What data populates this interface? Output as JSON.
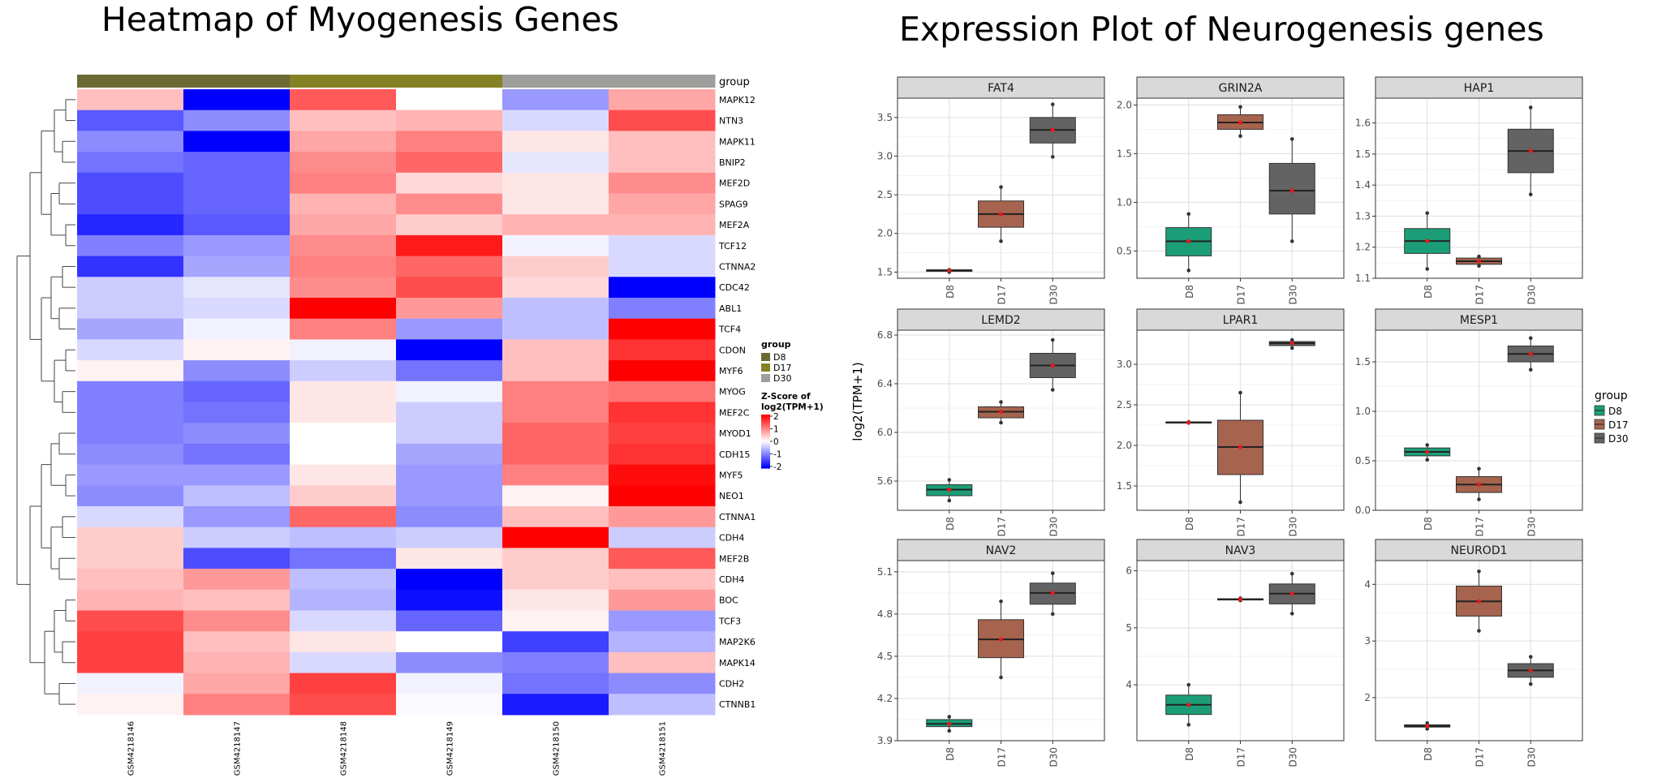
{
  "heatmap_title": "Heatmap of Myogenesis Genes",
  "boxplot_title": "Expression Plot of Neurogenesis genes",
  "chart_data": [
    {
      "type": "heatmap",
      "title": "Heatmap of Myogenesis Genes",
      "columns": [
        "GSM4218146",
        "GSM4218147",
        "GSM4218148",
        "GSM4218149",
        "GSM4218150",
        "GSM4218151"
      ],
      "column_groups": [
        "D8",
        "D8",
        "D17",
        "D17",
        "D30",
        "D30"
      ],
      "annotation_label": "group",
      "rows": [
        "MAPK12",
        "NTN3",
        "MAPK11",
        "BNIP2",
        "MEF2D",
        "SPAG9",
        "MEF2A",
        "TCF12",
        "CTNNA2",
        "CDC42",
        "ABL1",
        "TCF4",
        "CDON",
        "MYF6",
        "MYOG",
        "MEF2C",
        "MYOD1",
        "CDH15",
        "MYF5",
        "NEO1",
        "CTNNA1",
        "CDH4",
        "MEF2B",
        "CDH4",
        "BOC",
        "TCF3",
        "MAP2K6",
        "MAPK14",
        "CDH2",
        "CTNNB1"
      ],
      "values": [
        [
          0.5,
          -2.0,
          1.3,
          0.0,
          -0.8,
          0.7
        ],
        [
          -1.3,
          -0.9,
          0.5,
          0.6,
          -0.3,
          1.4
        ],
        [
          -0.9,
          -2.0,
          0.7,
          1.0,
          0.2,
          0.5
        ],
        [
          -1.1,
          -1.2,
          0.9,
          1.2,
          -0.2,
          0.5
        ],
        [
          -1.4,
          -1.2,
          1.0,
          0.3,
          0.2,
          0.9
        ],
        [
          -1.4,
          -1.2,
          0.6,
          0.9,
          0.2,
          0.7
        ],
        [
          -1.7,
          -1.3,
          0.7,
          0.4,
          0.6,
          0.6
        ],
        [
          -1.0,
          -0.8,
          0.9,
          1.8,
          -0.1,
          -0.3
        ],
        [
          -1.6,
          -0.7,
          1.0,
          1.2,
          0.4,
          -0.3
        ],
        [
          -0.4,
          -0.2,
          0.9,
          1.4,
          0.3,
          -2.0
        ],
        [
          -0.4,
          -0.3,
          2.0,
          0.8,
          -0.5,
          -1.0
        ],
        [
          -0.7,
          -0.1,
          1.0,
          -0.8,
          -0.5,
          2.0
        ],
        [
          -0.3,
          0.1,
          -0.1,
          -2.0,
          0.5,
          1.6
        ],
        [
          0.1,
          -0.9,
          -0.4,
          -1.1,
          0.5,
          2.0
        ],
        [
          -1.0,
          -1.2,
          0.2,
          -0.1,
          1.0,
          1.1
        ],
        [
          -1.0,
          -1.1,
          0.2,
          -0.4,
          1.0,
          1.6
        ],
        [
          -1.0,
          -0.9,
          0.0,
          -0.4,
          1.2,
          1.5
        ],
        [
          -0.9,
          -1.1,
          0.0,
          -0.7,
          1.2,
          1.6
        ],
        [
          -0.8,
          -0.8,
          0.2,
          -0.8,
          1.0,
          1.9
        ],
        [
          -0.9,
          -0.5,
          0.4,
          -0.8,
          0.1,
          2.0
        ],
        [
          -0.3,
          -0.8,
          1.2,
          -0.9,
          0.5,
          0.8
        ],
        [
          0.4,
          -0.4,
          -0.5,
          -0.4,
          2.0,
          -0.4
        ],
        [
          0.4,
          -1.4,
          -1.1,
          0.2,
          0.4,
          1.3
        ],
        [
          0.5,
          0.8,
          -0.5,
          -2.0,
          0.4,
          0.5
        ],
        [
          0.6,
          0.5,
          -0.6,
          -1.9,
          0.2,
          0.8
        ],
        [
          1.4,
          0.9,
          -0.3,
          -1.2,
          0.1,
          -0.8
        ],
        [
          1.5,
          0.5,
          0.2,
          0.0,
          -1.5,
          -0.6
        ],
        [
          1.5,
          0.6,
          -0.3,
          -0.9,
          -1.0,
          0.5
        ],
        [
          -0.1,
          0.7,
          1.5,
          -0.1,
          -1.1,
          -0.9
        ],
        [
          0.1,
          1.0,
          1.4,
          -0.05,
          -1.8,
          -0.5
        ]
      ],
      "color_scale": {
        "low": "#0000FF",
        "mid": "#FFFFFF",
        "high": "#FF0000",
        "range": [
          -2,
          2
        ]
      },
      "legend_group": {
        "title": "group",
        "items": [
          {
            "label": "D8",
            "color": "#6B6A35"
          },
          {
            "label": "D17",
            "color": "#848124"
          },
          {
            "label": "D30",
            "color": "#9E9E9C"
          }
        ]
      },
      "legend_scale": {
        "title": "Z-Score of log2(TPM+1)",
        "ticks": [
          "2",
          "1",
          "0",
          "-1",
          "-2"
        ]
      }
    },
    {
      "type": "box",
      "title": "Expression Plot of Neurogenesis genes",
      "ylabel": "log2(TPM+1)",
      "x": [
        "D8",
        "D17",
        "D30"
      ],
      "colors": {
        "D8": "#1B9E77",
        "D17": "#A6634E",
        "D30": "#636363"
      },
      "legend": {
        "title": "group",
        "items": [
          "D8",
          "D17",
          "D30"
        ],
        "position": "right"
      },
      "panels": [
        {
          "name": "FAT4",
          "yticks": [
            1.5,
            2.0,
            2.5,
            3.0,
            3.5
          ],
          "ylim": [
            1.42,
            3.75
          ],
          "boxes": [
            [
              1.5,
              1.51,
              1.52,
              1.53,
              1.54
            ],
            [
              1.9,
              2.08,
              2.25,
              2.42,
              2.6
            ],
            [
              2.99,
              3.17,
              3.34,
              3.5,
              3.67
            ]
          ],
          "points": [
            [
              1.5,
              1.51,
              1.53
            ],
            [
              1.9,
              2.25,
              2.6
            ],
            [
              2.99,
              3.34,
              3.67
            ]
          ]
        },
        {
          "name": "GRIN2A",
          "yticks": [
            0.5,
            1.0,
            1.5,
            2.0
          ],
          "ylim": [
            0.22,
            2.07
          ],
          "boxes": [
            [
              0.3,
              0.45,
              0.6,
              0.74,
              0.88
            ],
            [
              1.68,
              1.75,
              1.82,
              1.9,
              1.98
            ],
            [
              0.6,
              0.88,
              1.12,
              1.4,
              1.65
            ]
          ],
          "points": [
            [
              0.3,
              0.6,
              0.88
            ],
            [
              1.68,
              1.82,
              1.98
            ],
            [
              0.6,
              1.12,
              1.65
            ]
          ]
        },
        {
          "name": "HAP1",
          "yticks": [
            1.1,
            1.2,
            1.3,
            1.4,
            1.5,
            1.6
          ],
          "ylim": [
            1.1,
            1.68
          ],
          "boxes": [
            [
              1.13,
              1.18,
              1.22,
              1.26,
              1.31
            ],
            [
              1.14,
              1.145,
              1.155,
              1.165,
              1.17
            ],
            [
              1.37,
              1.44,
              1.51,
              1.58,
              1.65
            ]
          ],
          "points": [
            [
              1.13,
              1.22,
              1.31
            ],
            [
              1.14,
              1.155,
              1.17
            ],
            [
              1.37,
              1.51,
              1.65
            ]
          ]
        },
        {
          "name": "LEMD2",
          "yticks": [
            5.6,
            6.0,
            6.4,
            6.8
          ],
          "ylim": [
            5.36,
            6.84
          ],
          "boxes": [
            [
              5.44,
              5.48,
              5.53,
              5.57,
              5.61
            ],
            [
              6.08,
              6.12,
              6.17,
              6.21,
              6.25
            ],
            [
              6.35,
              6.45,
              6.55,
              6.65,
              6.76
            ]
          ],
          "points": [
            [
              5.44,
              5.53,
              5.61
            ],
            [
              6.08,
              6.17,
              6.25
            ],
            [
              6.35,
              6.55,
              6.76
            ]
          ]
        },
        {
          "name": "LPAR1",
          "yticks": [
            1.5,
            2.0,
            2.5,
            3.0
          ],
          "ylim": [
            1.2,
            3.42
          ],
          "boxes": [
            [
              2.28,
              2.28,
              2.28,
              2.29,
              2.29
            ],
            [
              1.3,
              1.64,
              1.98,
              2.31,
              2.65
            ],
            [
              3.2,
              3.23,
              3.26,
              3.28,
              3.3
            ]
          ],
          "points": [
            [
              2.28,
              2.28,
              2.29
            ],
            [
              1.3,
              1.98,
              2.65
            ],
            [
              3.2,
              3.26,
              3.3
            ]
          ]
        },
        {
          "name": "MESP1",
          "yticks": [
            0.0,
            0.5,
            1.0,
            1.5
          ],
          "ylim": [
            0.0,
            1.82
          ],
          "boxes": [
            [
              0.51,
              0.55,
              0.59,
              0.63,
              0.66
            ],
            [
              0.11,
              0.18,
              0.26,
              0.34,
              0.42
            ],
            [
              1.42,
              1.5,
              1.58,
              1.66,
              1.74
            ]
          ],
          "points": [
            [
              0.51,
              0.59,
              0.66
            ],
            [
              0.11,
              0.26,
              0.42
            ],
            [
              1.42,
              1.58,
              1.74
            ]
          ]
        },
        {
          "name": "NAV2",
          "yticks": [
            3.9,
            4.2,
            4.5,
            4.8,
            5.1
          ],
          "ylim": [
            3.9,
            5.18
          ],
          "boxes": [
            [
              3.97,
              4.0,
              4.02,
              4.05,
              4.07
            ],
            [
              4.35,
              4.49,
              4.62,
              4.76,
              4.89
            ],
            [
              4.8,
              4.87,
              4.95,
              5.02,
              5.09
            ]
          ],
          "points": [
            [
              3.97,
              4.02,
              4.07
            ],
            [
              4.35,
              4.62,
              4.89
            ],
            [
              4.8,
              4.95,
              5.09
            ]
          ]
        },
        {
          "name": "NAV3",
          "yticks": [
            4,
            5,
            6
          ],
          "ylim": [
            3.02,
            6.18
          ],
          "boxes": [
            [
              3.3,
              3.48,
              3.65,
              3.82,
              4.0
            ],
            [
              5.48,
              5.49,
              5.5,
              5.51,
              5.52
            ],
            [
              5.25,
              5.42,
              5.6,
              5.77,
              5.95
            ]
          ],
          "points": [
            [
              3.3,
              3.65,
              4.0
            ],
            [
              5.48,
              5.5,
              5.52
            ],
            [
              5.25,
              5.6,
              5.95
            ]
          ]
        },
        {
          "name": "NEUROD1",
          "yticks": [
            2,
            3,
            4
          ],
          "ylim": [
            1.24,
            4.42
          ],
          "boxes": [
            [
              1.45,
              1.48,
              1.5,
              1.52,
              1.55
            ],
            [
              3.18,
              3.44,
              3.7,
              3.97,
              4.23
            ],
            [
              2.24,
              2.36,
              2.48,
              2.6,
              2.72
            ]
          ],
          "points": [
            [
              1.45,
              1.5,
              1.55
            ],
            [
              3.18,
              3.7,
              4.23
            ],
            [
              2.24,
              2.48,
              2.72
            ]
          ]
        }
      ]
    }
  ]
}
